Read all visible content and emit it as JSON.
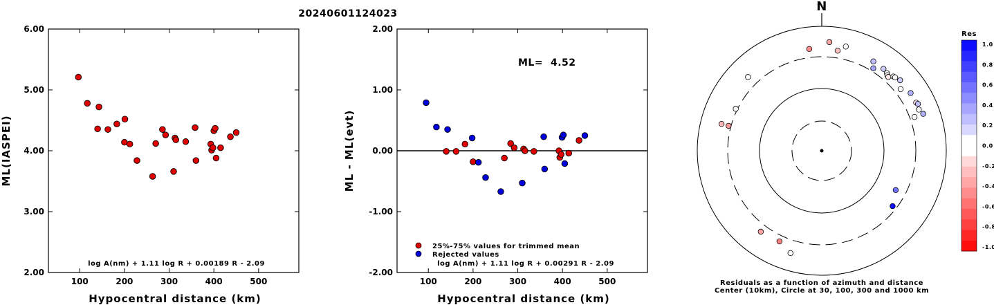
{
  "title": "20240601124023",
  "chart_data": [
    {
      "type": "scatter",
      "xlabel": "Hypocentral distance (km)",
      "ylabel": "ML(IASPEI)",
      "xlim": [
        30,
        590
      ],
      "ylim": [
        2.0,
        6.0
      ],
      "xticks": [
        100,
        200,
        300,
        400,
        500
      ],
      "yticks": [
        "2.00",
        "3.00",
        "4.00",
        "5.00",
        "6.00"
      ],
      "formula": "log A(nm) + 1.11 log R + 0.00189 R - 2.09",
      "marker_color": "#e00000",
      "points": [
        {
          "x": 97,
          "y": 5.21
        },
        {
          "x": 117,
          "y": 4.78
        },
        {
          "x": 140,
          "y": 4.36
        },
        {
          "x": 143,
          "y": 4.72
        },
        {
          "x": 163,
          "y": 4.35
        },
        {
          "x": 183,
          "y": 4.44
        },
        {
          "x": 200,
          "y": 4.14
        },
        {
          "x": 201,
          "y": 4.52
        },
        {
          "x": 212,
          "y": 4.11
        },
        {
          "x": 228,
          "y": 3.84
        },
        {
          "x": 263,
          "y": 3.58
        },
        {
          "x": 270,
          "y": 4.12
        },
        {
          "x": 285,
          "y": 4.35
        },
        {
          "x": 292,
          "y": 4.26
        },
        {
          "x": 310,
          "y": 3.66
        },
        {
          "x": 313,
          "y": 4.21
        },
        {
          "x": 315,
          "y": 4.18
        },
        {
          "x": 337,
          "y": 4.15
        },
        {
          "x": 358,
          "y": 4.38
        },
        {
          "x": 360,
          "y": 3.84
        },
        {
          "x": 393,
          "y": 4.11
        },
        {
          "x": 395,
          "y": 4.01
        },
        {
          "x": 398,
          "y": 4.05
        },
        {
          "x": 400,
          "y": 4.33
        },
        {
          "x": 403,
          "y": 4.37
        },
        {
          "x": 405,
          "y": 3.88
        },
        {
          "x": 415,
          "y": 4.05
        },
        {
          "x": 437,
          "y": 4.23
        },
        {
          "x": 450,
          "y": 4.3
        }
      ]
    },
    {
      "type": "scatter",
      "xlabel": "Hypocentral distance (km)",
      "ylabel": "ML - ML(evt)",
      "xlim": [
        30,
        590
      ],
      "ylim": [
        -2.0,
        2.0
      ],
      "xticks": [
        100,
        200,
        300,
        400,
        500
      ],
      "yticks": [
        "-2.00",
        "-1.00",
        "0.00",
        "1.00",
        "2.00"
      ],
      "zero_line": true,
      "annotation_label": "ML=",
      "annotation_value": "4.52",
      "formula": "log A(nm) + 1.11 log R + 0.00291 R - 2.09",
      "legend": [
        {
          "label": "25%-75% values for trimmed mean",
          "color": "#e00000"
        },
        {
          "label": "Rejected values",
          "color": "#0000dd"
        }
      ],
      "points": [
        {
          "x": 95,
          "y": 0.79,
          "group": "rejected"
        },
        {
          "x": 118,
          "y": 0.39,
          "group": "rejected"
        },
        {
          "x": 140,
          "y": -0.01,
          "group": "trimmed"
        },
        {
          "x": 143,
          "y": 0.35,
          "group": "rejected"
        },
        {
          "x": 162,
          "y": -0.01,
          "group": "trimmed"
        },
        {
          "x": 182,
          "y": 0.11,
          "group": "trimmed"
        },
        {
          "x": 198,
          "y": 0.21,
          "group": "rejected"
        },
        {
          "x": 200,
          "y": -0.18,
          "group": "trimmed"
        },
        {
          "x": 212,
          "y": -0.19,
          "group": "rejected"
        },
        {
          "x": 228,
          "y": -0.44,
          "group": "rejected"
        },
        {
          "x": 262,
          "y": -0.67,
          "group": "rejected"
        },
        {
          "x": 270,
          "y": -0.12,
          "group": "trimmed"
        },
        {
          "x": 284,
          "y": 0.12,
          "group": "trimmed"
        },
        {
          "x": 292,
          "y": 0.05,
          "group": "trimmed"
        },
        {
          "x": 310,
          "y": -0.53,
          "group": "rejected"
        },
        {
          "x": 313,
          "y": 0.03,
          "group": "trimmed"
        },
        {
          "x": 316,
          "y": 0.0,
          "group": "trimmed"
        },
        {
          "x": 336,
          "y": -0.01,
          "group": "trimmed"
        },
        {
          "x": 358,
          "y": 0.23,
          "group": "rejected"
        },
        {
          "x": 360,
          "y": -0.3,
          "group": "rejected"
        },
        {
          "x": 392,
          "y": 0.0,
          "group": "trimmed"
        },
        {
          "x": 394,
          "y": -0.11,
          "group": "trimmed"
        },
        {
          "x": 397,
          "y": -0.06,
          "group": "trimmed"
        },
        {
          "x": 399,
          "y": 0.22,
          "group": "rejected"
        },
        {
          "x": 402,
          "y": 0.26,
          "group": "rejected"
        },
        {
          "x": 405,
          "y": -0.21,
          "group": "rejected"
        },
        {
          "x": 414,
          "y": -0.04,
          "group": "trimmed"
        },
        {
          "x": 437,
          "y": 0.17,
          "group": "trimmed"
        },
        {
          "x": 450,
          "y": 0.25,
          "group": "rejected"
        }
      ]
    },
    {
      "type": "scatter",
      "subtype": "polar",
      "north_label": "N",
      "caption_line1": "Residuals as a function of azimuth and distance",
      "caption_line2": "Center (10km), Circle at 30, 100, 300 and 1000 km",
      "rings_km": [
        30,
        100,
        300,
        1000
      ],
      "colorbar": {
        "title": "Res",
        "ticks": [
          "1.0",
          "0.8",
          "0.6",
          "0.4",
          "0.2",
          "0.0",
          "-0.2",
          "-0.4",
          "-0.6",
          "-0.8",
          "-1.0"
        ],
        "positive_color": "#0000ff",
        "negative_color": "#ff0000"
      },
      "points": [
        {
          "azimuth_deg": 4,
          "distance_km": 540,
          "residual": -0.35
        },
        {
          "azimuth_deg": 353,
          "distance_km": 420,
          "residual": -0.45
        },
        {
          "azimuth_deg": 13,
          "distance_km": 500,
          "residual": 0.0
        },
        {
          "azimuth_deg": 9,
          "distance_km": 400,
          "residual": -0.25
        },
        {
          "azimuth_deg": 30,
          "distance_km": 430,
          "residual": 0.25
        },
        {
          "azimuth_deg": 37,
          "distance_km": 420,
          "residual": 0.2
        },
        {
          "azimuth_deg": 40,
          "distance_km": 400,
          "residual": 0.0
        },
        {
          "azimuth_deg": 41,
          "distance_km": 380,
          "residual": 0.0
        },
        {
          "azimuth_deg": 42,
          "distance_km": 370,
          "residual": -0.1
        },
        {
          "azimuth_deg": 44,
          "distance_km": 430,
          "residual": 0.05
        },
        {
          "azimuth_deg": 45,
          "distance_km": 440,
          "residual": -0.05
        },
        {
          "azimuth_deg": 48,
          "distance_km": 470,
          "residual": 0.2
        },
        {
          "azimuth_deg": 32,
          "distance_km": 340,
          "residual": 0.35
        },
        {
          "azimuth_deg": 52,
          "distance_km": 380,
          "residual": 0.0
        },
        {
          "azimuth_deg": 57,
          "distance_km": 480,
          "residual": 0.3
        },
        {
          "azimuth_deg": 63,
          "distance_km": 480,
          "residual": -0.1
        },
        {
          "azimuth_deg": 64,
          "distance_km": 500,
          "residual": 0.25
        },
        {
          "azimuth_deg": 67,
          "distance_km": 470,
          "residual": 0.0
        },
        {
          "azimuth_deg": 70,
          "distance_km": 520,
          "residual": 0.3
        },
        {
          "azimuth_deg": 70,
          "distance_km": 360,
          "residual": 0.0
        },
        {
          "azimuth_deg": 118,
          "distance_km": 210,
          "residual": 0.55
        },
        {
          "azimuth_deg": 128,
          "distance_km": 260,
          "residual": 0.95
        },
        {
          "azimuth_deg": 205,
          "distance_km": 380,
          "residual": -0.5
        },
        {
          "azimuth_deg": 217,
          "distance_km": 400,
          "residual": -0.35
        },
        {
          "azimuth_deg": 197,
          "distance_km": 500,
          "residual": 0.0
        },
        {
          "azimuth_deg": 285,
          "distance_km": 330,
          "residual": -0.4
        },
        {
          "azimuth_deg": 285,
          "distance_km": 440,
          "residual": -0.3
        },
        {
          "azimuth_deg": 296,
          "distance_km": 320,
          "residual": 0.0
        },
        {
          "azimuth_deg": 315,
          "distance_km": 450,
          "residual": 0.0
        }
      ]
    }
  ]
}
